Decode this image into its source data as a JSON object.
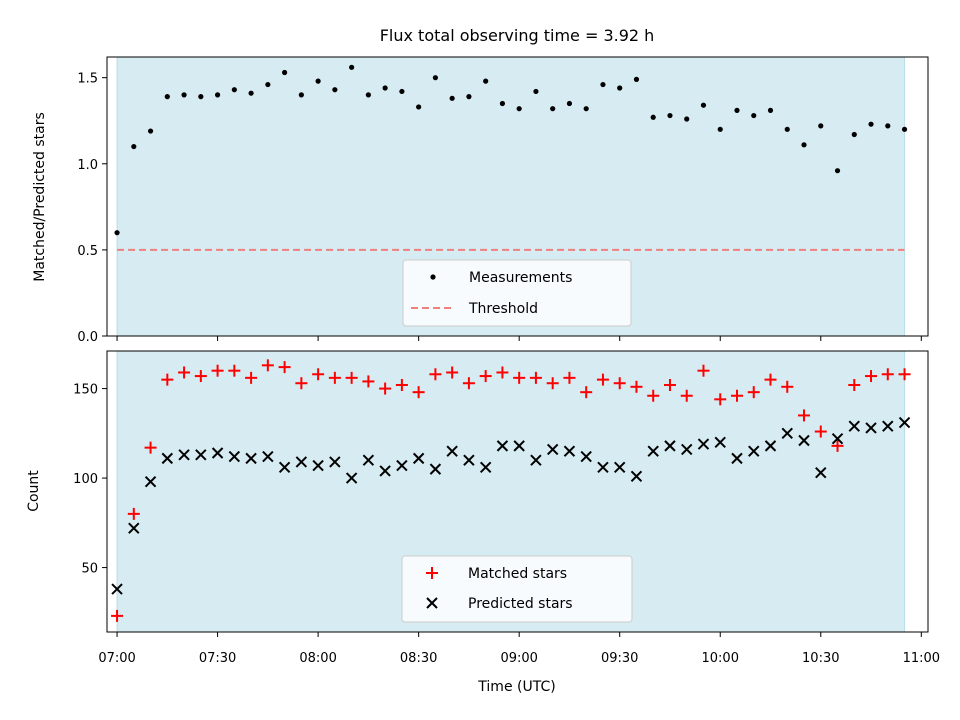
{
  "chart_data": [
    {
      "type": "scatter",
      "title": "Flux total observing time = 3.92 h",
      "xlabel": "",
      "ylabel": "Matched/Predicted stars",
      "xlim": [
        "06:57",
        "11:02"
      ],
      "ylim": [
        0,
        1.62
      ],
      "yticks": [
        "0.0",
        "0.5",
        "1.0",
        "1.5"
      ],
      "grid": false,
      "legend_position": "lower center",
      "shaded_interval": [
        "07:00",
        "10:55"
      ],
      "shaded_color": "#add8e6",
      "series": [
        {
          "name": "Measurements",
          "kind": "dot",
          "color": "#000000",
          "x": [
            "07:00",
            "07:05",
            "07:10",
            "07:15",
            "07:20",
            "07:25",
            "07:30",
            "07:35",
            "07:40",
            "07:45",
            "07:50",
            "07:55",
            "08:00",
            "08:05",
            "08:10",
            "08:15",
            "08:20",
            "08:25",
            "08:30",
            "08:35",
            "08:40",
            "08:45",
            "08:50",
            "08:55",
            "09:00",
            "09:05",
            "09:10",
            "09:15",
            "09:20",
            "09:25",
            "09:30",
            "09:35",
            "09:40",
            "09:45",
            "09:50",
            "09:55",
            "10:00",
            "10:05",
            "10:10",
            "10:15",
            "10:20",
            "10:25",
            "10:30",
            "10:35",
            "10:40",
            "10:45",
            "10:50",
            "10:55"
          ],
          "y": [
            0.6,
            1.1,
            1.19,
            1.39,
            1.4,
            1.39,
            1.4,
            1.43,
            1.41,
            1.46,
            1.53,
            1.4,
            1.48,
            1.43,
            1.56,
            1.4,
            1.44,
            1.42,
            1.33,
            1.5,
            1.38,
            1.39,
            1.48,
            1.35,
            1.32,
            1.42,
            1.32,
            1.35,
            1.32,
            1.46,
            1.44,
            1.49,
            1.27,
            1.28,
            1.26,
            1.34,
            1.2,
            1.31,
            1.28,
            1.31,
            1.2,
            1.11,
            1.22,
            0.96,
            1.17,
            1.23,
            1.22,
            1.2
          ]
        },
        {
          "name": "Threshold",
          "kind": "dashed-line",
          "color": "#f08080",
          "y": 0.5
        }
      ]
    },
    {
      "type": "scatter",
      "title": "",
      "xlabel": "Time (UTC)",
      "ylabel": "Count",
      "xlim": [
        "06:57",
        "11:02"
      ],
      "xticks": [
        "07:00",
        "07:30",
        "08:00",
        "08:30",
        "09:00",
        "09:30",
        "10:00",
        "10:30",
        "11:00"
      ],
      "ylim": [
        14,
        171
      ],
      "yticks": [
        "50",
        "100",
        "150"
      ],
      "grid": false,
      "legend_position": "lower center",
      "shaded_interval": [
        "07:00",
        "10:55"
      ],
      "shaded_color": "#add8e6",
      "series": [
        {
          "name": "Matched stars",
          "kind": "plus",
          "color": "#ff0000",
          "x": [
            "07:00",
            "07:05",
            "07:10",
            "07:15",
            "07:20",
            "07:25",
            "07:30",
            "07:35",
            "07:40",
            "07:45",
            "07:50",
            "07:55",
            "08:00",
            "08:05",
            "08:10",
            "08:15",
            "08:20",
            "08:25",
            "08:30",
            "08:35",
            "08:40",
            "08:45",
            "08:50",
            "08:55",
            "09:00",
            "09:05",
            "09:10",
            "09:15",
            "09:20",
            "09:25",
            "09:30",
            "09:35",
            "09:40",
            "09:45",
            "09:50",
            "09:55",
            "10:00",
            "10:05",
            "10:10",
            "10:15",
            "10:20",
            "10:25",
            "10:30",
            "10:35",
            "10:40",
            "10:45",
            "10:50",
            "10:55"
          ],
          "y": [
            23,
            80,
            117,
            155,
            159,
            157,
            160,
            160,
            156,
            163,
            162,
            153,
            158,
            156,
            156,
            154,
            150,
            152,
            148,
            158,
            159,
            153,
            157,
            159,
            156,
            156,
            153,
            156,
            148,
            155,
            153,
            151,
            146,
            152,
            146,
            160,
            144,
            146,
            148,
            155,
            151,
            135,
            126,
            118,
            152,
            157,
            158,
            158
          ]
        },
        {
          "name": "Predicted stars",
          "kind": "x",
          "color": "#000000",
          "x": [
            "07:00",
            "07:05",
            "07:10",
            "07:15",
            "07:20",
            "07:25",
            "07:30",
            "07:35",
            "07:40",
            "07:45",
            "07:50",
            "07:55",
            "08:00",
            "08:05",
            "08:10",
            "08:15",
            "08:20",
            "08:25",
            "08:30",
            "08:35",
            "08:40",
            "08:45",
            "08:50",
            "08:55",
            "09:00",
            "09:05",
            "09:10",
            "09:15",
            "09:20",
            "09:25",
            "09:30",
            "09:35",
            "09:40",
            "09:45",
            "09:50",
            "09:55",
            "10:00",
            "10:05",
            "10:10",
            "10:15",
            "10:20",
            "10:25",
            "10:30",
            "10:35",
            "10:40",
            "10:45",
            "10:50",
            "10:55"
          ],
          "y": [
            38,
            72,
            98,
            111,
            113,
            113,
            114,
            112,
            111,
            112,
            106,
            109,
            107,
            109,
            100,
            110,
            104,
            107,
            111,
            105,
            115,
            110,
            106,
            118,
            118,
            110,
            116,
            115,
            112,
            106,
            106,
            101,
            115,
            118,
            116,
            119,
            120,
            111,
            115,
            118,
            125,
            121,
            103,
            122,
            129,
            128,
            129,
            131
          ]
        }
      ]
    }
  ]
}
